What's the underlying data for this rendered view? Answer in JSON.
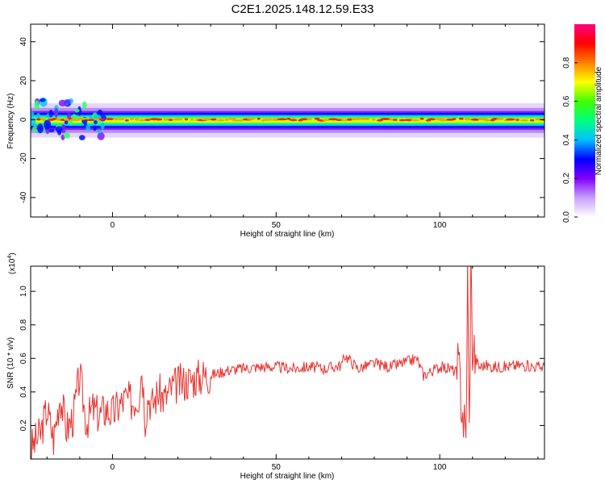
{
  "title": "C2E1.2025.148.12.59.E33",
  "chart_data": [
    {
      "type": "heatmap",
      "xlabel": "Height of straight line (km)",
      "ylabel": "Frequency (Hz)",
      "xlim": [
        -25,
        132
      ],
      "ylim": [
        -50,
        49
      ],
      "xticks": [
        0,
        50,
        100
      ],
      "yticks": [
        -40,
        -20,
        0,
        20,
        40
      ],
      "band_center_hz": 0,
      "band_halfwidth_hz": 4,
      "colorbar": {
        "label": "Normalized spectral amplitude",
        "range": [
          0,
          1
        ],
        "ticks": [
          "0.0",
          "0.2",
          "0.4",
          "0.6",
          "0.8"
        ],
        "colors": [
          "#ffffff",
          "#c8a0ff",
          "#8000ff",
          "#0000ff",
          "#00c0ff",
          "#00ff80",
          "#40ff00",
          "#ffff00",
          "#ff8000",
          "#ff0000",
          "#ff0080"
        ]
      }
    },
    {
      "type": "line",
      "xlabel": "Height of straight line (km)",
      "ylabel": "SNR (10 * v/v)",
      "scale_label": "(x10",
      "scale_exponent": "4",
      "xlim": [
        -25,
        132
      ],
      "ylim": [
        0,
        1.15
      ],
      "xticks": [
        0,
        50,
        100
      ],
      "yticks": [
        "0.2",
        "0.4",
        "0.6",
        "0.8",
        "1.0"
      ],
      "color": "#e8332f",
      "series": [
        {
          "x": [
            -25,
            -22,
            -20,
            -18,
            -16,
            -14,
            -12,
            -10,
            -8,
            -6,
            -4,
            -2,
            0,
            2,
            4,
            6,
            8,
            9,
            10,
            11,
            12,
            14,
            16,
            18,
            20,
            22,
            25,
            28,
            30,
            35,
            40,
            45,
            50,
            55,
            60,
            65,
            70,
            71,
            75,
            80,
            85,
            90,
            93,
            95,
            100,
            103,
            105,
            106,
            107,
            108,
            108.5,
            109,
            109.5,
            110,
            111,
            112,
            114,
            116,
            120,
            125,
            130,
            132
          ],
          "y": [
            0.06,
            0.15,
            0.3,
            0.12,
            0.38,
            0.18,
            0.25,
            0.5,
            0.22,
            0.3,
            0.26,
            0.3,
            0.27,
            0.32,
            0.36,
            0.34,
            0.38,
            0.55,
            0.25,
            0.38,
            0.32,
            0.4,
            0.36,
            0.42,
            0.45,
            0.46,
            0.48,
            0.5,
            0.5,
            0.53,
            0.54,
            0.55,
            0.55,
            0.54,
            0.55,
            0.54,
            0.56,
            0.62,
            0.54,
            0.57,
            0.55,
            0.58,
            0.6,
            0.5,
            0.55,
            0.54,
            0.52,
            0.5,
            0.3,
            0.1,
            1.1,
            0.15,
            1.15,
            0.7,
            0.6,
            0.55,
            0.56,
            0.55,
            0.55,
            0.56,
            0.55,
            0.55
          ]
        }
      ]
    }
  ]
}
